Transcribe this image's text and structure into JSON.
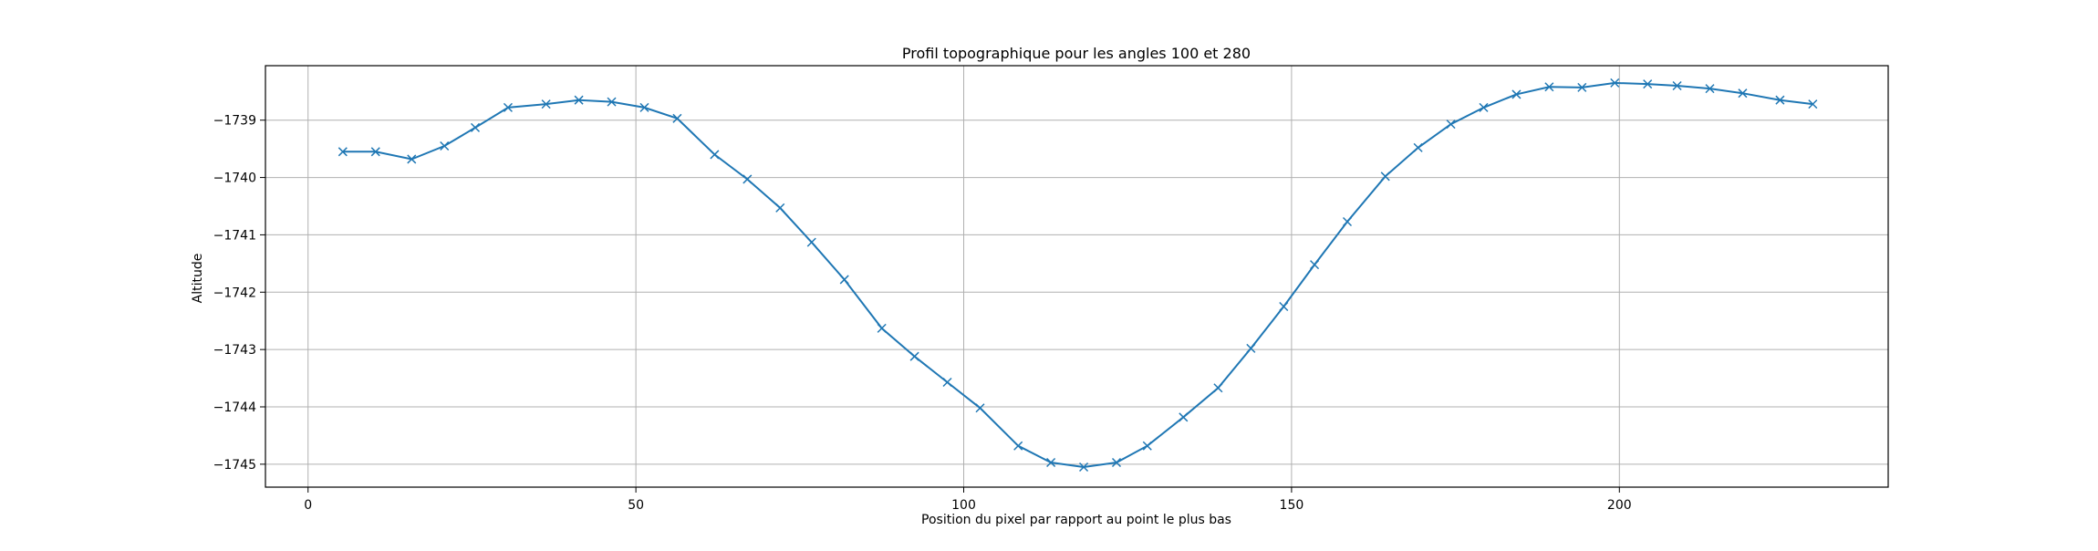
{
  "chart_data": {
    "type": "line",
    "title": "Profil topographique pour les angles 100 et 280",
    "xlabel": "Position du pixel par rapport au point le plus bas",
    "ylabel": "Altitude",
    "xlim": [
      -6.5,
      241
    ],
    "ylim": [
      -1745.4,
      -1738.05
    ],
    "xticks": [
      0,
      50,
      100,
      150,
      200
    ],
    "xtick_labels": [
      "0",
      "50",
      "100",
      "150",
      "200"
    ],
    "yticks": [
      -1739,
      -1740,
      -1741,
      -1742,
      -1743,
      -1744,
      -1745
    ],
    "ytick_labels": [
      "−1739",
      "−1740",
      "−1741",
      "−1742",
      "−1743",
      "−1744",
      "−1745"
    ],
    "grid": true,
    "marker": "x",
    "color": "#1f77b4",
    "series": [
      {
        "x": [
          5.3,
          10.3,
          15.8,
          20.8,
          25.5,
          30.5,
          36.3,
          41.3,
          46.3,
          51.3,
          56.3,
          62.0,
          67.0,
          72.0,
          76.8,
          81.8,
          87.5,
          92.5,
          97.5,
          102.5,
          108.3,
          113.3,
          118.3,
          123.3,
          128.0,
          133.5,
          138.8,
          143.8,
          148.8,
          153.5,
          158.5,
          164.3,
          169.3,
          174.3,
          179.3,
          184.3,
          189.3,
          194.3,
          199.3,
          204.3,
          208.8,
          213.8,
          218.8,
          224.5,
          229.5
        ],
        "y": [
          -1739.55,
          -1739.55,
          -1739.68,
          -1739.45,
          -1739.13,
          -1738.78,
          -1738.72,
          -1738.65,
          -1738.68,
          -1738.78,
          -1738.97,
          -1739.6,
          -1740.03,
          -1740.53,
          -1741.13,
          -1741.78,
          -1742.63,
          -1743.12,
          -1743.57,
          -1744.02,
          -1744.68,
          -1744.97,
          -1745.05,
          -1744.97,
          -1744.68,
          -1744.18,
          -1743.67,
          -1742.98,
          -1742.25,
          -1741.52,
          -1740.77,
          -1739.98,
          -1739.48,
          -1739.07,
          -1738.78,
          -1738.55,
          -1738.42,
          -1738.43,
          -1738.35,
          -1738.37,
          -1738.4,
          -1738.45,
          -1738.53,
          -1738.65,
          -1738.72
        ]
      }
    ]
  }
}
